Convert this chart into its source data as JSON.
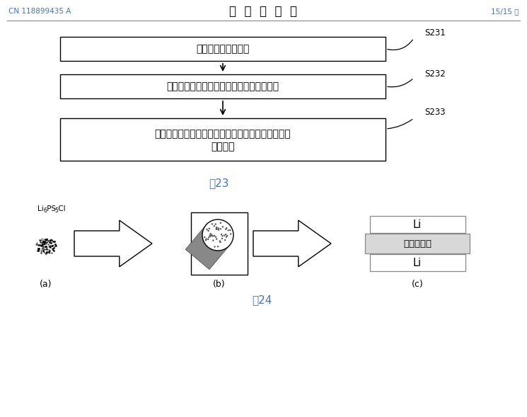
{
  "bg_color": "#ffffff",
  "header_left": "CN 118899435 A",
  "header_center": "说  明  书  附  图",
  "header_right": "15/15 页",
  "blue_color": "#4472c4",
  "text_color": "#000000",
  "fig23_label": "图23",
  "fig24_label": "图24",
  "box1_text": "形成掺杂硫化物材料",
  "box2_text": "利用掺杂硫化物材料形成硫化物固态电解质",
  "box3_line1": "组装金属锂负极、硫化物固态电解质和正极，得到锂",
  "box3_line2": "离子电池",
  "s231": "S231",
  "s232": "S232",
  "s233": "S233",
  "label_a": "(a)",
  "label_b": "(b)",
  "label_c": "(c)",
  "label_a_formula": "Li",
  "label_a_6": "6",
  "label_a_ps": " PS",
  "label_a_5": "5",
  "label_a_cl": " Cl",
  "li_top": "Li",
  "solid_electrolyte": "固态电解质",
  "li_bottom": "Li"
}
